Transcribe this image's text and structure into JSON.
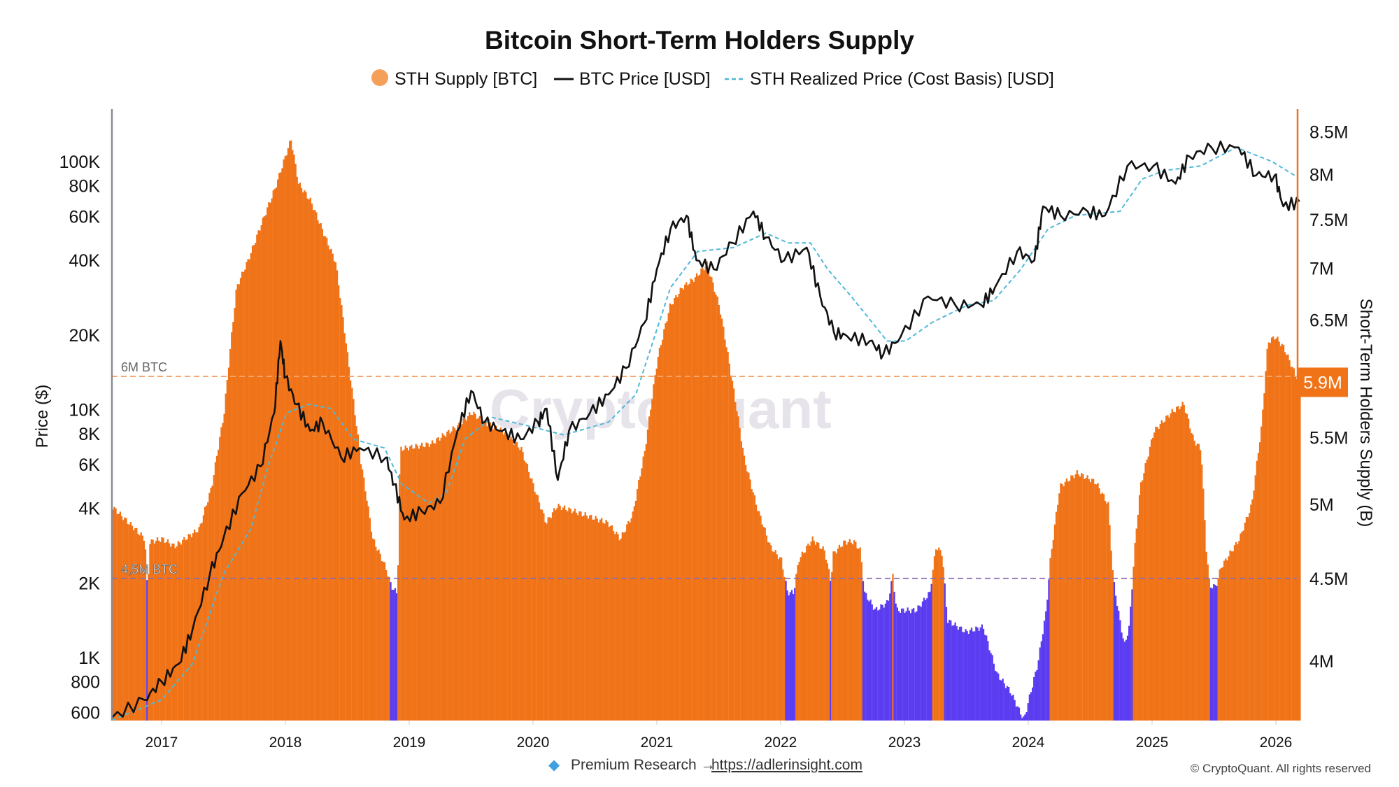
{
  "chart_data": {
    "type": "bar+line",
    "title": "Bitcoin Short-Term Holders Supply",
    "legend": {
      "placement": "top-center",
      "items": [
        "STH Supply [BTC]",
        "BTC Price [USD]",
        "STH Realized Price (Cost Basis) [USD]"
      ]
    },
    "ylabel_left": "Price ($)",
    "ylabel_right": "Short-Term Holders Supply (B)",
    "y_left_scale": "log",
    "y_right_scale": "log",
    "y_left_ticks": [
      {
        "v": 600,
        "label": "600"
      },
      {
        "v": 800,
        "label": "800"
      },
      {
        "v": 1000,
        "label": "1K"
      },
      {
        "v": 2000,
        "label": "2K"
      },
      {
        "v": 4000,
        "label": "4K"
      },
      {
        "v": 6000,
        "label": "6K"
      },
      {
        "v": 8000,
        "label": "8K"
      },
      {
        "v": 10000,
        "label": "10K"
      },
      {
        "v": 20000,
        "label": "20K"
      },
      {
        "v": 40000,
        "label": "40K"
      },
      {
        "v": 60000,
        "label": "60K"
      },
      {
        "v": 80000,
        "label": "80K"
      },
      {
        "v": 100000,
        "label": "100K"
      }
    ],
    "y_right_ticks": [
      {
        "v": 4.0,
        "label": "4M"
      },
      {
        "v": 4.5,
        "label": "4.5M"
      },
      {
        "v": 5.0,
        "label": "5M"
      },
      {
        "v": 5.5,
        "label": "5.5M"
      },
      {
        "v": 6.5,
        "label": "6.5M"
      },
      {
        "v": 7.0,
        "label": "7M"
      },
      {
        "v": 7.5,
        "label": "7.5M"
      },
      {
        "v": 8.0,
        "label": "8M"
      },
      {
        "v": 8.5,
        "label": "8.5M"
      }
    ],
    "x_ticks": [
      "2017",
      "2018",
      "2019",
      "2020",
      "2021",
      "2022",
      "2023",
      "2024",
      "2025",
      "2026"
    ],
    "x_range": [
      2016.6,
      2026.19
    ],
    "y_left_range": [
      559,
      162000
    ],
    "y_right_range_millions": [
      3.67,
      8.77
    ],
    "grid": false,
    "colors": {
      "supply_above": "#f07318",
      "supply_below": "#5b3cf0",
      "price": "#111111",
      "realized": "#4fb8d8",
      "line_6m": "#f4a46a",
      "line_45m": "#8a6cb0"
    },
    "reference_lines": [
      {
        "value_millions": 6.0,
        "label": "6M BTC"
      },
      {
        "value_millions": 4.5,
        "label": "4,5M BTC"
      }
    ],
    "current_value_label": "5.9M",
    "supply_millions": [
      [
        2016.6,
        4.98
      ],
      [
        2016.86,
        4.76
      ],
      [
        2016.88,
        4.4
      ],
      [
        2016.9,
        4.74
      ],
      [
        2017.0,
        4.76
      ],
      [
        2017.1,
        4.71
      ],
      [
        2017.3,
        4.83
      ],
      [
        2017.4,
        5.13
      ],
      [
        2017.5,
        5.7
      ],
      [
        2017.6,
        6.81
      ],
      [
        2017.7,
        7.1
      ],
      [
        2017.91,
        7.84
      ],
      [
        2018.04,
        8.41
      ],
      [
        2018.1,
        7.9
      ],
      [
        2018.2,
        7.7
      ],
      [
        2018.3,
        7.37
      ],
      [
        2018.4,
        7.06
      ],
      [
        2018.5,
        6.15
      ],
      [
        2018.6,
        5.34
      ],
      [
        2018.7,
        4.76
      ],
      [
        2018.8,
        4.58
      ],
      [
        2018.85,
        4.45
      ],
      [
        2018.9,
        4.4
      ],
      [
        2018.92,
        5.41
      ],
      [
        2019.17,
        5.45
      ],
      [
        2019.4,
        5.6
      ],
      [
        2019.5,
        5.7
      ],
      [
        2019.6,
        5.62
      ],
      [
        2019.75,
        5.55
      ],
      [
        2019.9,
        5.41
      ],
      [
        2020.0,
        5.13
      ],
      [
        2020.1,
        4.87
      ],
      [
        2020.19,
        4.99
      ],
      [
        2020.4,
        4.93
      ],
      [
        2020.6,
        4.87
      ],
      [
        2020.7,
        4.76
      ],
      [
        2020.8,
        4.93
      ],
      [
        2020.9,
        5.41
      ],
      [
        2021.0,
        6.15
      ],
      [
        2021.1,
        6.63
      ],
      [
        2021.2,
        6.81
      ],
      [
        2021.3,
        6.9
      ],
      [
        2021.4,
        7.04
      ],
      [
        2021.5,
        6.63
      ],
      [
        2021.6,
        5.98
      ],
      [
        2021.7,
        5.34
      ],
      [
        2021.8,
        4.99
      ],
      [
        2021.91,
        4.71
      ],
      [
        2022.0,
        4.62
      ],
      [
        2022.05,
        4.41
      ],
      [
        2022.1,
        4.41
      ],
      [
        2022.14,
        4.62
      ],
      [
        2022.25,
        4.76
      ],
      [
        2022.35,
        4.68
      ],
      [
        2022.4,
        4.48
      ],
      [
        2022.42,
        4.66
      ],
      [
        2022.51,
        4.74
      ],
      [
        2022.59,
        4.74
      ],
      [
        2022.64,
        4.68
      ],
      [
        2022.67,
        4.41
      ],
      [
        2022.76,
        4.3
      ],
      [
        2022.86,
        4.35
      ],
      [
        2022.9,
        4.52
      ],
      [
        2022.93,
        4.3
      ],
      [
        2023.09,
        4.3
      ],
      [
        2023.2,
        4.41
      ],
      [
        2023.25,
        4.71
      ],
      [
        2023.3,
        4.66
      ],
      [
        2023.34,
        4.24
      ],
      [
        2023.49,
        4.17
      ],
      [
        2023.63,
        4.2
      ],
      [
        2023.74,
        3.93
      ],
      [
        2023.85,
        3.83
      ],
      [
        2023.92,
        3.73
      ],
      [
        2023.96,
        3.68
      ],
      [
        2024.07,
        3.98
      ],
      [
        2024.14,
        4.3
      ],
      [
        2024.17,
        4.6
      ],
      [
        2024.25,
        5.13
      ],
      [
        2024.39,
        5.23
      ],
      [
        2024.54,
        5.16
      ],
      [
        2024.64,
        5.0
      ],
      [
        2024.68,
        4.5
      ],
      [
        2024.72,
        4.3
      ],
      [
        2024.77,
        4.09
      ],
      [
        2024.81,
        4.2
      ],
      [
        2024.86,
        4.76
      ],
      [
        2024.9,
        5.13
      ],
      [
        2025.01,
        5.55
      ],
      [
        2025.15,
        5.7
      ],
      [
        2025.25,
        5.77
      ],
      [
        2025.33,
        5.48
      ],
      [
        2025.39,
        5.41
      ],
      [
        2025.43,
        4.71
      ],
      [
        2025.46,
        4.45
      ],
      [
        2025.51,
        4.45
      ],
      [
        2025.55,
        4.57
      ],
      [
        2025.7,
        4.76
      ],
      [
        2025.8,
        5.0
      ],
      [
        2025.88,
        5.6
      ],
      [
        2025.93,
        6.3
      ],
      [
        2025.99,
        6.35
      ],
      [
        2026.06,
        6.25
      ],
      [
        2026.13,
        6.07
      ],
      [
        2026.17,
        5.98
      ]
    ],
    "btc_price_usd": [
      [
        2016.6,
        573
      ],
      [
        2016.86,
        676
      ],
      [
        2017.0,
        800
      ],
      [
        2017.14,
        945
      ],
      [
        2017.25,
        1300
      ],
      [
        2017.39,
        2170
      ],
      [
        2017.5,
        3030
      ],
      [
        2017.65,
        4600
      ],
      [
        2017.8,
        5900
      ],
      [
        2017.91,
        9700
      ],
      [
        2017.96,
        18900
      ],
      [
        2018.0,
        13500
      ],
      [
        2018.09,
        10500
      ],
      [
        2018.2,
        8200
      ],
      [
        2018.3,
        8900
      ],
      [
        2018.45,
        6400
      ],
      [
        2018.6,
        7000
      ],
      [
        2018.81,
        6400
      ],
      [
        2018.88,
        5000
      ],
      [
        2018.96,
        3600
      ],
      [
        2019.1,
        3900
      ],
      [
        2019.25,
        4200
      ],
      [
        2019.39,
        8200
      ],
      [
        2019.5,
        11900
      ],
      [
        2019.61,
        8900
      ],
      [
        2019.75,
        8200
      ],
      [
        2019.9,
        7600
      ],
      [
        2020.04,
        8900
      ],
      [
        2020.11,
        10100
      ],
      [
        2020.2,
        5200
      ],
      [
        2020.29,
        8200
      ],
      [
        2020.46,
        9700
      ],
      [
        2020.61,
        11500
      ],
      [
        2020.75,
        14700
      ],
      [
        2020.9,
        22400
      ],
      [
        2021.0,
        36800
      ],
      [
        2021.11,
        53500
      ],
      [
        2021.24,
        60600
      ],
      [
        2021.32,
        40000
      ],
      [
        2021.46,
        36800
      ],
      [
        2021.61,
        47000
      ],
      [
        2021.78,
        63000
      ],
      [
        2021.88,
        49400
      ],
      [
        2022.03,
        40000
      ],
      [
        2022.21,
        45000
      ],
      [
        2022.32,
        28600
      ],
      [
        2022.43,
        20500
      ],
      [
        2022.54,
        19700
      ],
      [
        2022.72,
        18900
      ],
      [
        2022.83,
        16700
      ],
      [
        2022.97,
        19700
      ],
      [
        2023.19,
        28600
      ],
      [
        2023.41,
        26400
      ],
      [
        2023.62,
        26400
      ],
      [
        2023.73,
        31000
      ],
      [
        2023.91,
        43400
      ],
      [
        2024.05,
        40000
      ],
      [
        2024.12,
        66000
      ],
      [
        2024.26,
        60600
      ],
      [
        2024.48,
        63000
      ],
      [
        2024.62,
        60600
      ],
      [
        2024.8,
        96000
      ],
      [
        2025.01,
        96000
      ],
      [
        2025.19,
        81500
      ],
      [
        2025.3,
        105000
      ],
      [
        2025.48,
        114000
      ],
      [
        2025.7,
        114000
      ],
      [
        2025.84,
        88000
      ],
      [
        2025.99,
        88000
      ],
      [
        2026.06,
        66000
      ],
      [
        2026.19,
        69000
      ]
    ],
    "sth_realized_price_usd": [
      [
        2016.6,
        559
      ],
      [
        2017.0,
        676
      ],
      [
        2017.25,
        945
      ],
      [
        2017.5,
        2170
      ],
      [
        2017.72,
        3300
      ],
      [
        2017.86,
        5900
      ],
      [
        2018.01,
        9700
      ],
      [
        2018.19,
        10500
      ],
      [
        2018.37,
        10100
      ],
      [
        2018.55,
        7600
      ],
      [
        2018.8,
        7000
      ],
      [
        2018.94,
        5000
      ],
      [
        2019.16,
        4200
      ],
      [
        2019.3,
        4600
      ],
      [
        2019.45,
        7600
      ],
      [
        2019.67,
        9300
      ],
      [
        2019.96,
        8600
      ],
      [
        2020.25,
        7900
      ],
      [
        2020.61,
        8900
      ],
      [
        2020.83,
        11500
      ],
      [
        2020.97,
        18900
      ],
      [
        2021.11,
        31000
      ],
      [
        2021.33,
        43400
      ],
      [
        2021.62,
        45000
      ],
      [
        2021.88,
        51500
      ],
      [
        2022.06,
        47000
      ],
      [
        2022.24,
        47000
      ],
      [
        2022.38,
        36800
      ],
      [
        2022.57,
        28600
      ],
      [
        2022.86,
        18900
      ],
      [
        2023.01,
        18900
      ],
      [
        2023.22,
        22400
      ],
      [
        2023.51,
        26400
      ],
      [
        2023.72,
        27500
      ],
      [
        2023.94,
        36800
      ],
      [
        2024.16,
        53500
      ],
      [
        2024.38,
        60600
      ],
      [
        2024.74,
        63000
      ],
      [
        2024.92,
        85000
      ],
      [
        2025.1,
        92000
      ],
      [
        2025.39,
        96000
      ],
      [
        2025.68,
        114000
      ],
      [
        2025.97,
        100000
      ],
      [
        2026.15,
        88000
      ]
    ],
    "watermark": "CryptoQuant"
  },
  "footer": {
    "premium_icon": "gem-icon",
    "premium_text": "Premium Research →",
    "link": "https://adlerinsight.com",
    "copyright": "© CryptoQuant. All rights reserved"
  }
}
